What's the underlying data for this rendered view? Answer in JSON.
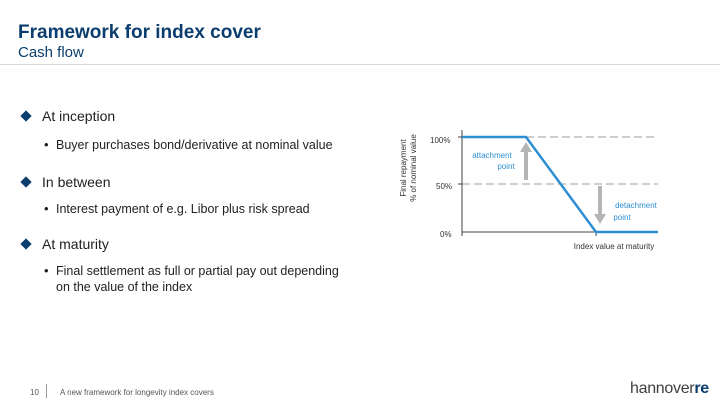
{
  "header": {
    "title": "Framework for index cover",
    "subtitle": "Cash flow"
  },
  "bullets": [
    {
      "heading": "At inception",
      "detail": "Buyer purchases bond/derivative at nominal value"
    },
    {
      "heading": "In between",
      "detail": "Interest payment of e.g. Libor plus risk spread"
    },
    {
      "heading": "At maturity",
      "detail_line1": "Final settlement as full or partial pay out depending",
      "detail_line2": "on the value of the index"
    }
  ],
  "diagram": {
    "y_axis_label_line1": "Final repayment",
    "y_axis_label_line2": "% of nominal value",
    "y_ticks": [
      "100%",
      "50%",
      "0%"
    ],
    "x_axis_label": "Index value at maturity",
    "attachment_label_line1": "attachment",
    "attachment_label_line2": "point",
    "detachment_label_line1": "detachment",
    "detachment_label_line2": "point",
    "colors": {
      "line": "#2e8ed3",
      "axis": "#404040",
      "dashed": "#9e9e9e",
      "arrow": "#b5b5b5"
    }
  },
  "footer": {
    "page_number": "10",
    "text": "A new framework for longevity index covers",
    "logo_main": "hannover",
    "logo_accent": "re"
  }
}
